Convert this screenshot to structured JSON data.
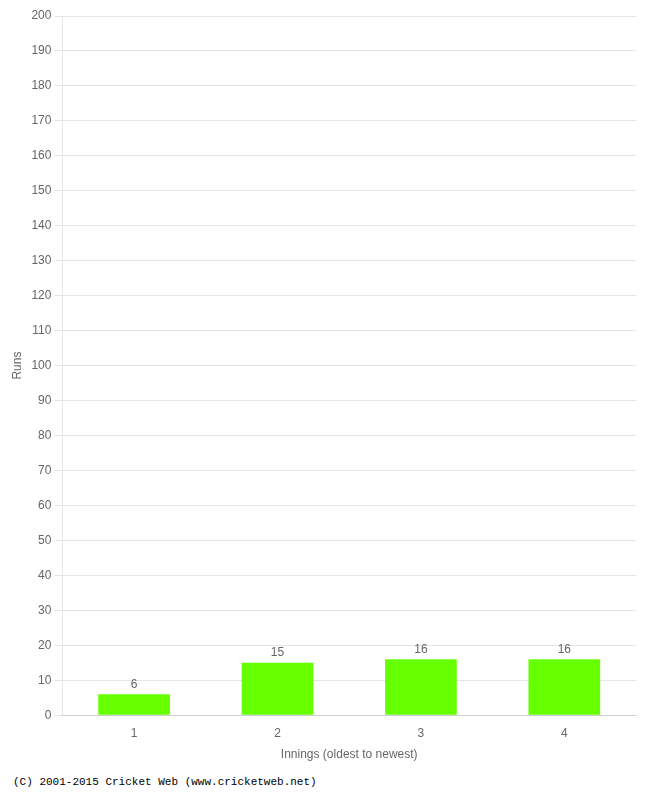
{
  "chart_data": {
    "type": "bar",
    "categories": [
      "1",
      "2",
      "3",
      "4"
    ],
    "values": [
      6,
      15,
      16,
      16
    ],
    "color": "#66ff00",
    "xlabel": "Innings (oldest to newest)",
    "ylabel": "Runs",
    "ylim": [
      0,
      200
    ],
    "yticks": [
      0,
      10,
      20,
      30,
      40,
      50,
      60,
      70,
      80,
      90,
      100,
      110,
      120,
      130,
      140,
      150,
      160,
      170,
      180,
      190,
      200
    ],
    "grid": true,
    "data_labels": true,
    "footer": "(C) 2001-2015 Cricket Web (www.cricketweb.net)"
  }
}
